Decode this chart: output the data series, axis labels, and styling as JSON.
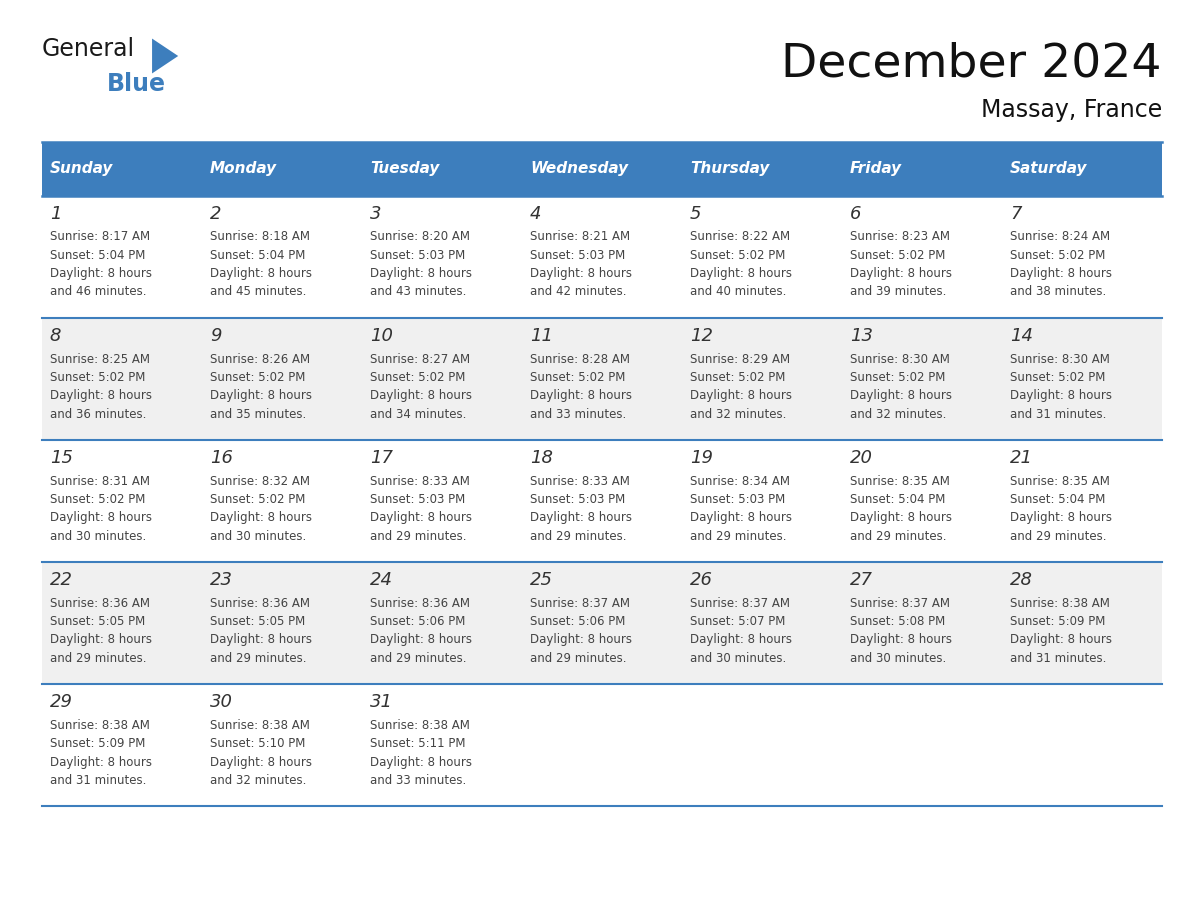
{
  "title": "December 2024",
  "subtitle": "Massay, France",
  "header_color": "#3D7EBD",
  "header_text_color": "#FFFFFF",
  "days_of_week": [
    "Sunday",
    "Monday",
    "Tuesday",
    "Wednesday",
    "Thursday",
    "Friday",
    "Saturday"
  ],
  "bg_color": "#FFFFFF",
  "cell_bg_even": "#FFFFFF",
  "cell_bg_odd": "#F0F0F0",
  "border_color": "#3D7EBD",
  "text_color": "#333333",
  "calendar_data": [
    [
      {
        "day": 1,
        "sunrise": "8:17 AM",
        "sunset": "5:04 PM",
        "daylight": "8 hours and 46 minutes."
      },
      {
        "day": 2,
        "sunrise": "8:18 AM",
        "sunset": "5:04 PM",
        "daylight": "8 hours and 45 minutes."
      },
      {
        "day": 3,
        "sunrise": "8:20 AM",
        "sunset": "5:03 PM",
        "daylight": "8 hours and 43 minutes."
      },
      {
        "day": 4,
        "sunrise": "8:21 AM",
        "sunset": "5:03 PM",
        "daylight": "8 hours and 42 minutes."
      },
      {
        "day": 5,
        "sunrise": "8:22 AM",
        "sunset": "5:02 PM",
        "daylight": "8 hours and 40 minutes."
      },
      {
        "day": 6,
        "sunrise": "8:23 AM",
        "sunset": "5:02 PM",
        "daylight": "8 hours and 39 minutes."
      },
      {
        "day": 7,
        "sunrise": "8:24 AM",
        "sunset": "5:02 PM",
        "daylight": "8 hours and 38 minutes."
      }
    ],
    [
      {
        "day": 8,
        "sunrise": "8:25 AM",
        "sunset": "5:02 PM",
        "daylight": "8 hours and 36 minutes."
      },
      {
        "day": 9,
        "sunrise": "8:26 AM",
        "sunset": "5:02 PM",
        "daylight": "8 hours and 35 minutes."
      },
      {
        "day": 10,
        "sunrise": "8:27 AM",
        "sunset": "5:02 PM",
        "daylight": "8 hours and 34 minutes."
      },
      {
        "day": 11,
        "sunrise": "8:28 AM",
        "sunset": "5:02 PM",
        "daylight": "8 hours and 33 minutes."
      },
      {
        "day": 12,
        "sunrise": "8:29 AM",
        "sunset": "5:02 PM",
        "daylight": "8 hours and 32 minutes."
      },
      {
        "day": 13,
        "sunrise": "8:30 AM",
        "sunset": "5:02 PM",
        "daylight": "8 hours and 32 minutes."
      },
      {
        "day": 14,
        "sunrise": "8:30 AM",
        "sunset": "5:02 PM",
        "daylight": "8 hours and 31 minutes."
      }
    ],
    [
      {
        "day": 15,
        "sunrise": "8:31 AM",
        "sunset": "5:02 PM",
        "daylight": "8 hours and 30 minutes."
      },
      {
        "day": 16,
        "sunrise": "8:32 AM",
        "sunset": "5:02 PM",
        "daylight": "8 hours and 30 minutes."
      },
      {
        "day": 17,
        "sunrise": "8:33 AM",
        "sunset": "5:03 PM",
        "daylight": "8 hours and 29 minutes."
      },
      {
        "day": 18,
        "sunrise": "8:33 AM",
        "sunset": "5:03 PM",
        "daylight": "8 hours and 29 minutes."
      },
      {
        "day": 19,
        "sunrise": "8:34 AM",
        "sunset": "5:03 PM",
        "daylight": "8 hours and 29 minutes."
      },
      {
        "day": 20,
        "sunrise": "8:35 AM",
        "sunset": "5:04 PM",
        "daylight": "8 hours and 29 minutes."
      },
      {
        "day": 21,
        "sunrise": "8:35 AM",
        "sunset": "5:04 PM",
        "daylight": "8 hours and 29 minutes."
      }
    ],
    [
      {
        "day": 22,
        "sunrise": "8:36 AM",
        "sunset": "5:05 PM",
        "daylight": "8 hours and 29 minutes."
      },
      {
        "day": 23,
        "sunrise": "8:36 AM",
        "sunset": "5:05 PM",
        "daylight": "8 hours and 29 minutes."
      },
      {
        "day": 24,
        "sunrise": "8:36 AM",
        "sunset": "5:06 PM",
        "daylight": "8 hours and 29 minutes."
      },
      {
        "day": 25,
        "sunrise": "8:37 AM",
        "sunset": "5:06 PM",
        "daylight": "8 hours and 29 minutes."
      },
      {
        "day": 26,
        "sunrise": "8:37 AM",
        "sunset": "5:07 PM",
        "daylight": "8 hours and 30 minutes."
      },
      {
        "day": 27,
        "sunrise": "8:37 AM",
        "sunset": "5:08 PM",
        "daylight": "8 hours and 30 minutes."
      },
      {
        "day": 28,
        "sunrise": "8:38 AM",
        "sunset": "5:09 PM",
        "daylight": "8 hours and 31 minutes."
      }
    ],
    [
      {
        "day": 29,
        "sunrise": "8:38 AM",
        "sunset": "5:09 PM",
        "daylight": "8 hours and 31 minutes."
      },
      {
        "day": 30,
        "sunrise": "8:38 AM",
        "sunset": "5:10 PM",
        "daylight": "8 hours and 32 minutes."
      },
      {
        "day": 31,
        "sunrise": "8:38 AM",
        "sunset": "5:11 PM",
        "daylight": "8 hours and 33 minutes."
      },
      null,
      null,
      null,
      null
    ]
  ]
}
